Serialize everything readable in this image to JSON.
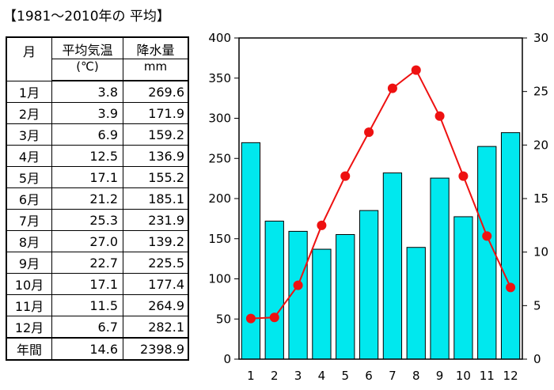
{
  "title": "【1981～2010年の 平均】",
  "table": {
    "headers": {
      "month": "月",
      "temp": "平均気温",
      "temp_unit": "(℃)",
      "rain": "降水量",
      "rain_unit": "mm"
    },
    "rows": [
      {
        "month": "1月",
        "temp": "3.8",
        "rain": "269.6"
      },
      {
        "month": "2月",
        "temp": "3.9",
        "rain": "171.9"
      },
      {
        "month": "3月",
        "temp": "6.9",
        "rain": "159.2"
      },
      {
        "month": "4月",
        "temp": "12.5",
        "rain": "136.9"
      },
      {
        "month": "5月",
        "temp": "17.1",
        "rain": "155.2"
      },
      {
        "month": "6月",
        "temp": "21.2",
        "rain": "185.1"
      },
      {
        "month": "7月",
        "temp": "25.3",
        "rain": "231.9"
      },
      {
        "month": "8月",
        "temp": "27.0",
        "rain": "139.2"
      },
      {
        "month": "9月",
        "temp": "22.7",
        "rain": "225.5"
      },
      {
        "month": "10月",
        "temp": "17.1",
        "rain": "177.4"
      },
      {
        "month": "11月",
        "temp": "11.5",
        "rain": "264.9"
      },
      {
        "month": "12月",
        "temp": "6.7",
        "rain": "282.1"
      }
    ],
    "total": {
      "month": "年間",
      "temp": "14.6",
      "rain": "2398.9"
    }
  },
  "chart_data": {
    "type": "bar",
    "categories": [
      "1",
      "2",
      "3",
      "4",
      "5",
      "6",
      "7",
      "8",
      "9",
      "10",
      "11",
      "12"
    ],
    "series": [
      {
        "type": "bar",
        "axis": "left",
        "values": [
          269.6,
          171.9,
          159.2,
          136.9,
          155.2,
          185.1,
          231.9,
          139.2,
          225.5,
          177.4,
          264.9,
          282.1
        ],
        "color": "#00e8ee"
      },
      {
        "type": "line",
        "axis": "right",
        "values": [
          3.8,
          3.9,
          6.9,
          12.5,
          17.1,
          21.2,
          25.3,
          27.0,
          22.7,
          17.1,
          11.5,
          6.7
        ],
        "color": "#ee1111"
      }
    ],
    "ylim_left": [
      0,
      400
    ],
    "ylim_right": [
      0,
      30
    ],
    "yticks_left": [
      0,
      50,
      100,
      150,
      200,
      250,
      300,
      350,
      400
    ],
    "yticks_right": [
      0,
      5,
      10,
      15,
      20,
      25,
      30
    ],
    "title": "",
    "xlabel": "",
    "ylabel": "",
    "grid": false
  }
}
